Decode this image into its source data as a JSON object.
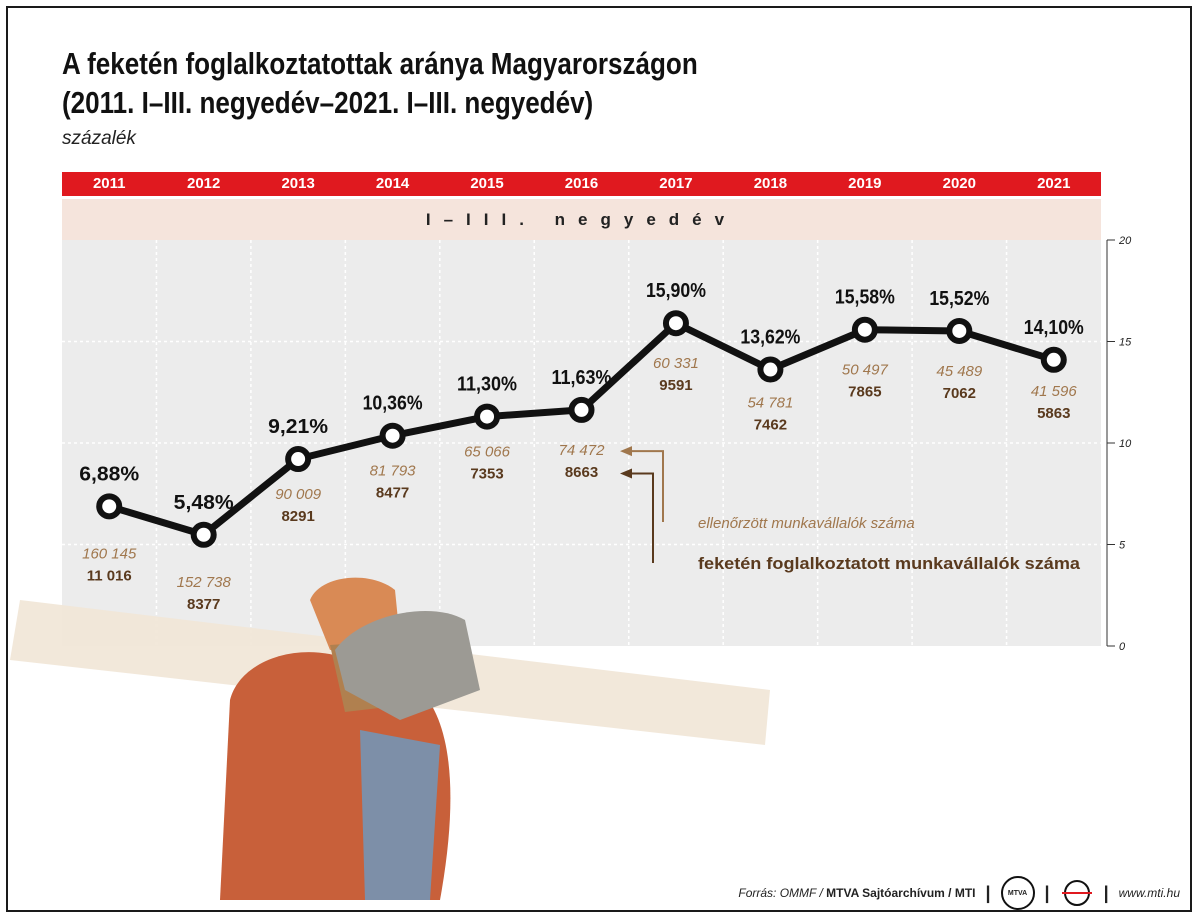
{
  "title": {
    "line1": "A feketén foglalkoztatottak aránya Magyarországon",
    "line2": "(2011. I–III. negyedév–2021. I–III. negyedév)"
  },
  "unit": "százalék",
  "quarter_label": "I–III. negyedév",
  "colors": {
    "accent_red": "#e0191f",
    "quarter_bg": "#f5e4dc",
    "plot_bg": "#ececec",
    "line": "#111111",
    "checked_color": "#a0774d",
    "black_color": "#5a3a1e"
  },
  "chart_data": {
    "type": "line",
    "title": "A feketén foglalkoztatottak aránya Magyarországon",
    "ylabel": "százalék",
    "ylim": [
      0,
      20
    ],
    "yticks": [
      0,
      5,
      10,
      15,
      20
    ],
    "categories": [
      "2011",
      "2012",
      "2013",
      "2014",
      "2015",
      "2016",
      "2017",
      "2018",
      "2019",
      "2020",
      "2021"
    ],
    "values": [
      6.88,
      5.48,
      9.21,
      10.36,
      11.3,
      11.63,
      15.9,
      13.62,
      15.58,
      15.52,
      14.1
    ],
    "value_labels": [
      "6,88%",
      "5,48%",
      "9,21%",
      "10,36%",
      "11,30%",
      "11,63%",
      "15,90%",
      "13,62%",
      "15,58%",
      "15,52%",
      "14,10%"
    ],
    "checked_workers": [
      "160 145",
      "152 738",
      "90 009",
      "81 793",
      "65 066",
      "74 472",
      "60 331",
      "54 781",
      "50 497",
      "45 489",
      "41 596"
    ],
    "black_workers": [
      "11 016",
      "8377",
      "8291",
      "8477",
      "7353",
      "8663",
      "9591",
      "7462",
      "7865",
      "7062",
      "5863"
    ],
    "legend": {
      "checked": "ellenőrzött munkavállalók száma",
      "black": "feketén foglalkoztatott munkavállalók száma"
    }
  },
  "footer": {
    "source_prefix": "Forrás: OMMF / ",
    "source_bold": "MTVA Sajtóarchívum / MTI",
    "logo1": "MTVA",
    "url": "www.mti.hu"
  }
}
